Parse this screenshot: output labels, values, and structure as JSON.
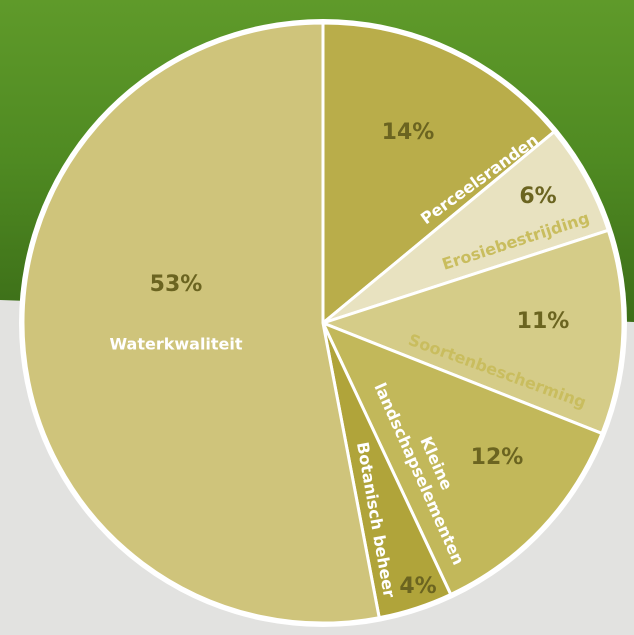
{
  "chart_data": {
    "type": "pie",
    "categories": [
      "Perceelsranden",
      "Erosiebestrijding",
      "Soortenbescherming",
      "Kleine landschapselementen",
      "Botanisch beheer",
      "Waterkwaliteit"
    ],
    "values": [
      14,
      6,
      11,
      12,
      4,
      53
    ],
    "value_labels": [
      "14%",
      "6%",
      "11%",
      "12%",
      "4%",
      "53%"
    ],
    "colors": [
      "#b9ad4a",
      "#e8e2c0",
      "#d5cc88",
      "#c2b85a",
      "#b0a43a",
      "#cfc47b"
    ]
  }
}
